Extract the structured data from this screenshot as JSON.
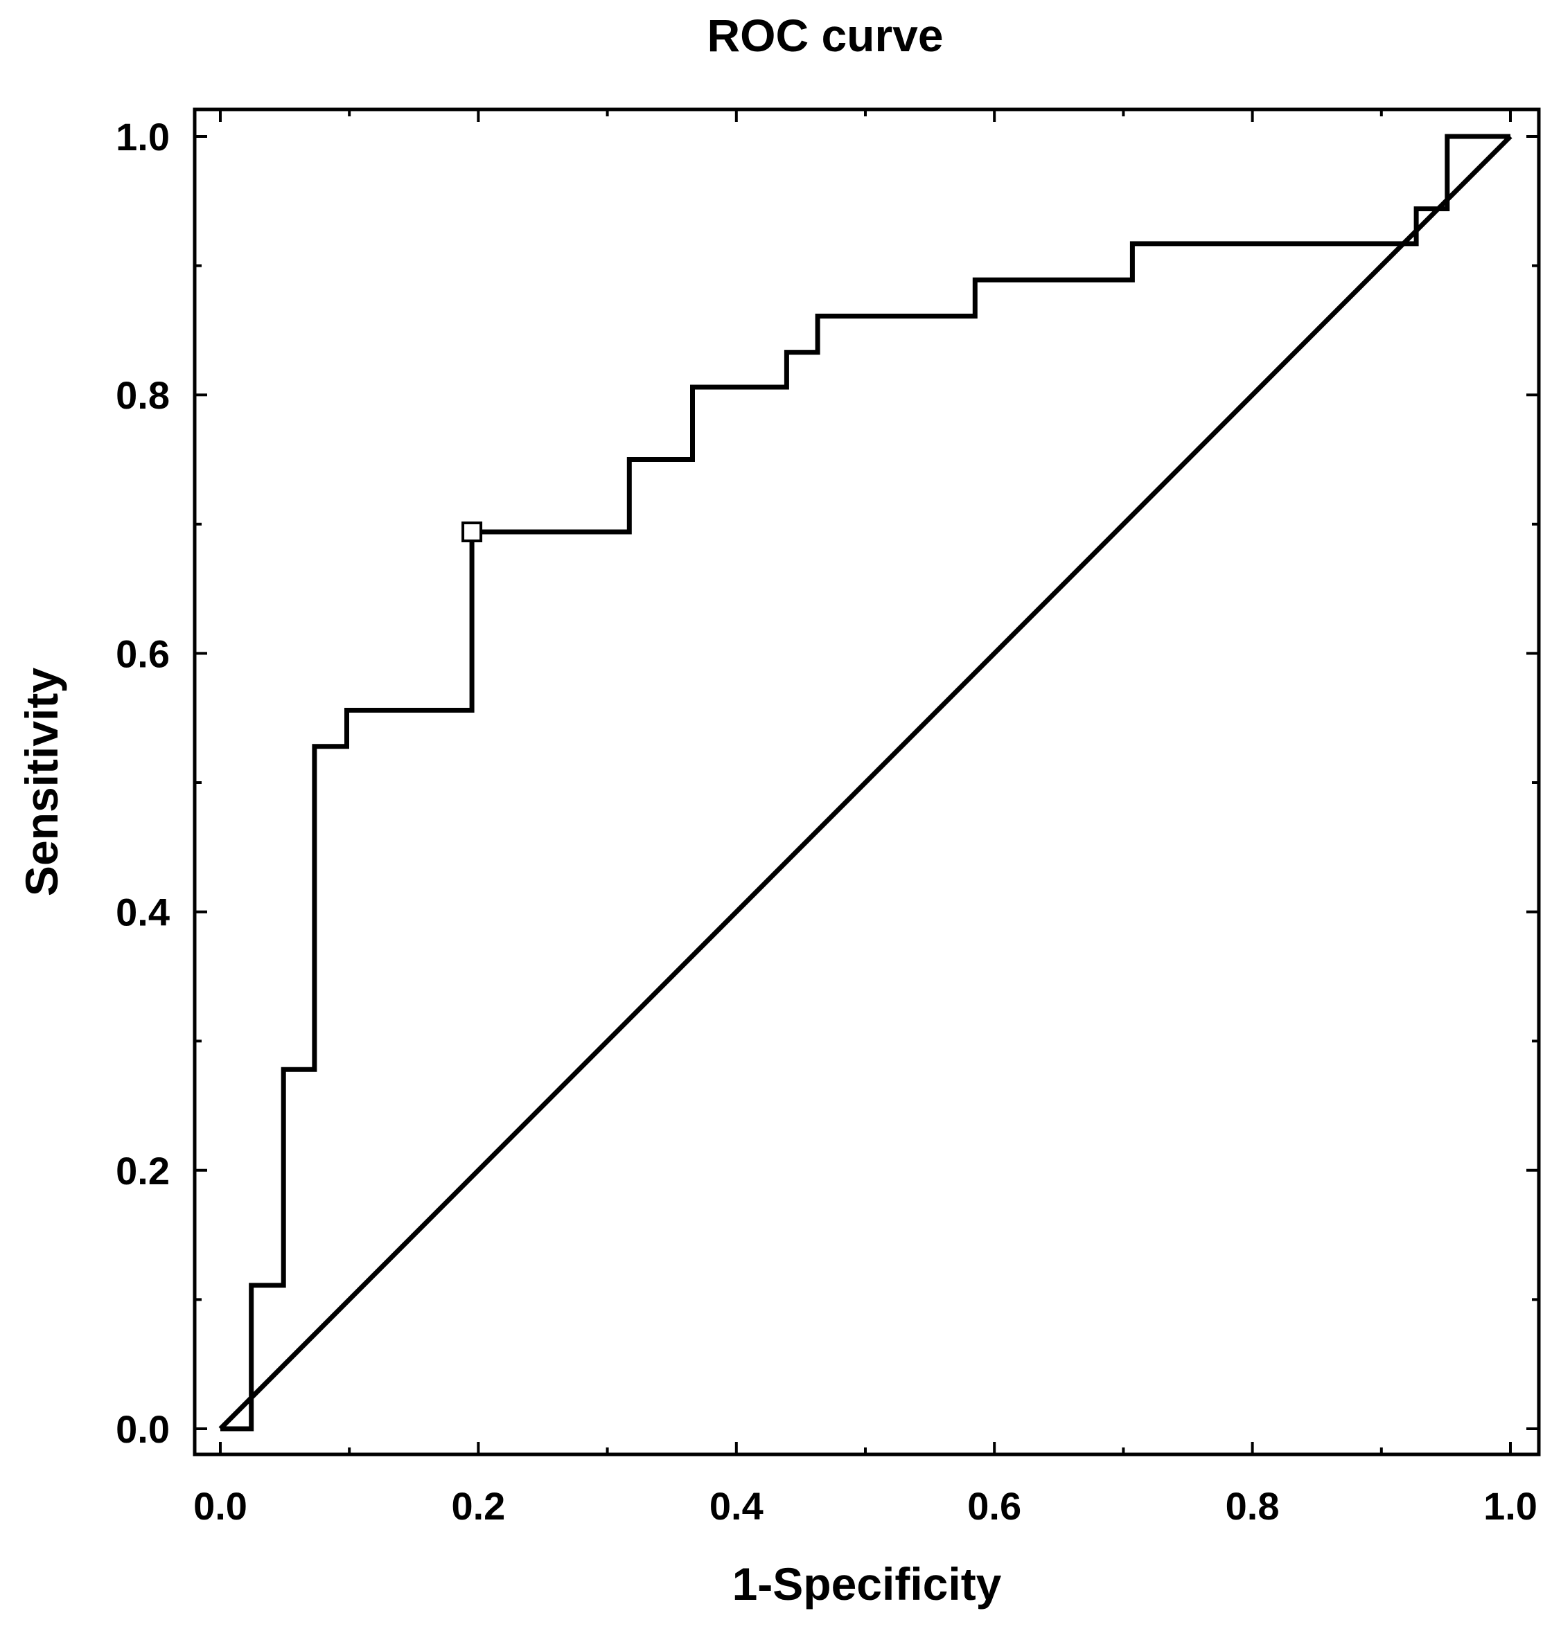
{
  "chart_data": {
    "type": "line",
    "title": "ROC curve",
    "xlabel": "1-Specificity",
    "ylabel": "Sensitivity",
    "xlim": [
      0.0,
      1.0
    ],
    "ylim": [
      0.0,
      1.0
    ],
    "x_ticks": [
      0.0,
      0.2,
      0.4,
      0.6,
      0.8,
      1.0
    ],
    "x_tick_labels": [
      "0.0",
      "0.2",
      "0.4",
      "0.6",
      "0.8",
      "1.0"
    ],
    "y_ticks": [
      0.0,
      0.2,
      0.4,
      0.6,
      0.8,
      1.0
    ],
    "y_tick_labels": [
      "0.0",
      "0.2",
      "0.4",
      "0.6",
      "0.8",
      "1.0"
    ],
    "grid": false,
    "series": [
      {
        "name": "ROC curve",
        "style": "step",
        "x": [
          0.0,
          0.024,
          0.024,
          0.049,
          0.049,
          0.073,
          0.073,
          0.098,
          0.098,
          0.195,
          0.195,
          0.317,
          0.317,
          0.366,
          0.366,
          0.439,
          0.439,
          0.463,
          0.463,
          0.585,
          0.585,
          0.707,
          0.707,
          0.927,
          0.927,
          0.951,
          0.951,
          1.0
        ],
        "y": [
          0.0,
          0.0,
          0.111,
          0.111,
          0.278,
          0.278,
          0.528,
          0.528,
          0.556,
          0.556,
          0.694,
          0.694,
          0.75,
          0.75,
          0.806,
          0.806,
          0.833,
          0.833,
          0.861,
          0.861,
          0.889,
          0.889,
          0.917,
          0.917,
          0.944,
          0.944,
          1.0,
          1.0
        ]
      },
      {
        "name": "Reference line",
        "style": "line",
        "x": [
          0.0,
          1.0
        ],
        "y": [
          0.0,
          1.0
        ]
      }
    ],
    "markers": [
      {
        "name": "Optimal cut-off",
        "shape": "square",
        "x": 0.195,
        "y": 0.694
      }
    ],
    "colors": {
      "line": "#000000",
      "background": "#ffffff"
    }
  }
}
